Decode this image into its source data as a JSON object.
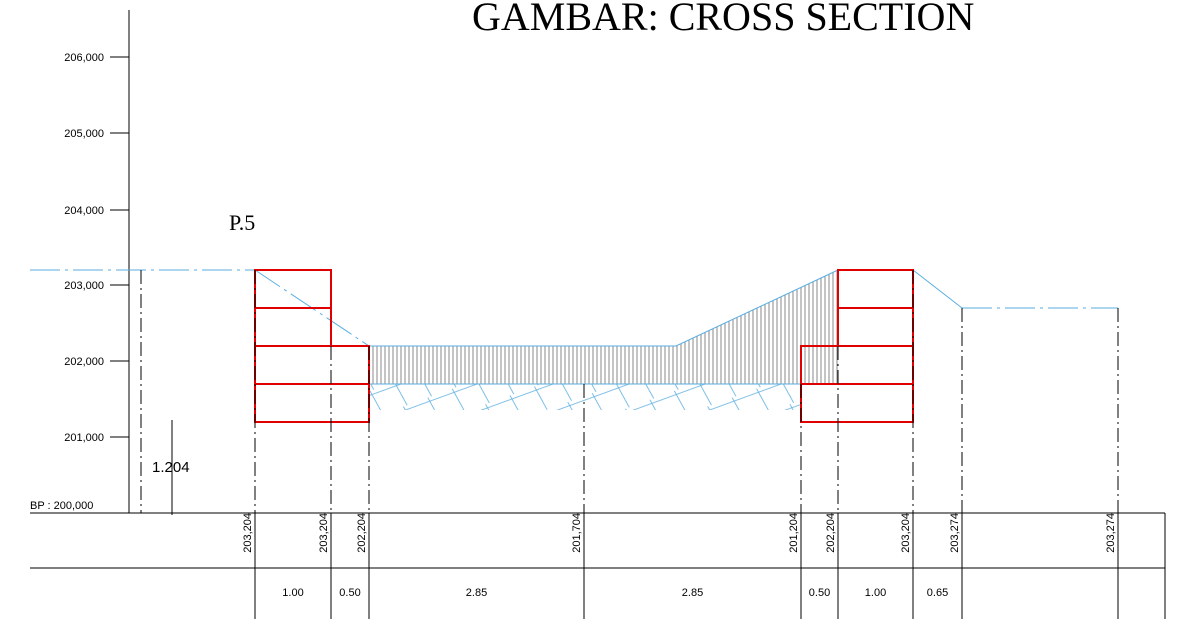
{
  "title": "GAMBAR:   CROSS SECTION",
  "label": "P.5",
  "height_label": "1.204",
  "elevation_axis": [
    "206,000",
    "205,000",
    "204,000",
    "203,000",
    "202,000",
    "201,000",
    "BP : 200,000"
  ],
  "elevations": [
    "203,204",
    "203,204",
    "202,204",
    "201,704",
    "201,204",
    "202,204",
    "203,204",
    "203,274",
    "203,274"
  ],
  "distances": [
    "1.00",
    "0.50",
    "2.85",
    "2.85",
    "0.50",
    "1.00",
    "0.65"
  ]
}
